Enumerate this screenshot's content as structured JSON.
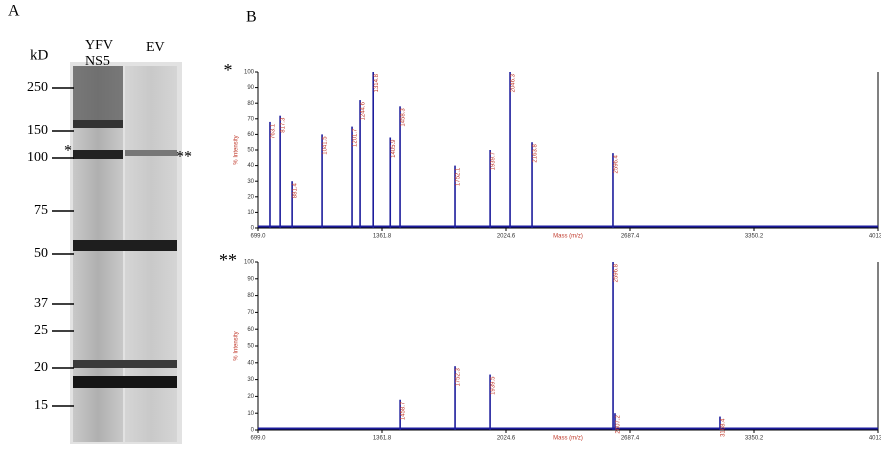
{
  "panel_labels": [
    "A",
    "B"
  ],
  "gel": {
    "unit": "kD",
    "lane_labels": [
      [
        "YFV",
        "NS5"
      ],
      [
        "EV"
      ]
    ],
    "markers": [
      250,
      150,
      100,
      75,
      50,
      37,
      25,
      20,
      15
    ],
    "annotations": [
      "*",
      "**"
    ]
  },
  "chart_data": [
    {
      "type": "bar",
      "annotation": "*",
      "xlabel": "Mass (m/z)",
      "ylabel": "% Intensity",
      "color": "#1c1c9c",
      "label_color": "#c0392b",
      "x": [
        763.1,
        817.3,
        881.4,
        1041.5,
        1201.7,
        1244.6,
        1314.8,
        1405.9,
        1458.3,
        1752.1,
        1939.7,
        2046.3,
        2163.8,
        2596.4
      ],
      "values": [
        68,
        72,
        30,
        60,
        65,
        82,
        100,
        58,
        78,
        40,
        50,
        100,
        55,
        48
      ],
      "xlim": [
        699.0,
        4013.0
      ],
      "xticks": [
        {
          "value": 699.0,
          "label": "699.0"
        },
        {
          "value": 1361.8,
          "label": "1361.8"
        },
        {
          "value": 2024.6,
          "label": "2024.6"
        },
        {
          "value": 2687.4,
          "label": "2687.4"
        },
        {
          "value": 3350.2,
          "label": "3350.2"
        },
        {
          "value": 4013.0,
          "label": "4013.0"
        }
      ],
      "ylim": [
        0,
        100
      ],
      "yticks": [
        0,
        10,
        20,
        30,
        40,
        50,
        60,
        70,
        80,
        90,
        100
      ]
    },
    {
      "type": "bar",
      "annotation": "**",
      "xlabel": "Mass (m/z)",
      "ylabel": "% Intensity",
      "color": "#1c1c9c",
      "label_color": "#c0392b",
      "x": [
        1458.7,
        1752.3,
        1939.5,
        2596.8,
        2607.2,
        3168.4
      ],
      "values": [
        18,
        38,
        33,
        100,
        10,
        8
      ],
      "xlim": [
        699.0,
        4013.0
      ],
      "xticks": [
        {
          "value": 699.0,
          "label": "699.0"
        },
        {
          "value": 1361.8,
          "label": "1361.8"
        },
        {
          "value": 2024.6,
          "label": "2024.6"
        },
        {
          "value": 2687.4,
          "label": "2687.4"
        },
        {
          "value": 3350.2,
          "label": "3350.2"
        },
        {
          "value": 4013.0,
          "label": "4013.0"
        }
      ],
      "ylim": [
        0,
        100
      ],
      "yticks": [
        0,
        10,
        20,
        30,
        40,
        50,
        60,
        70,
        80,
        90,
        100
      ]
    }
  ]
}
